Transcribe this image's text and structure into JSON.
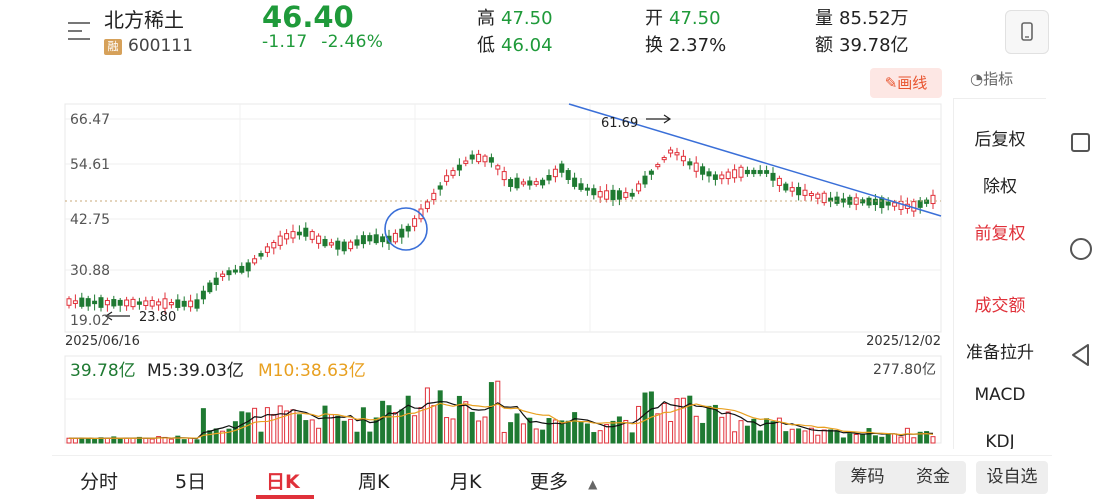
{
  "header": {
    "stock_name": "北方稀土",
    "badge": "融",
    "stock_code": "600111",
    "price": "46.40",
    "change": "-1.17",
    "change_pct": "-2.46%",
    "high_label": "高",
    "high": "47.50",
    "low_label": "低",
    "low": "46.04",
    "open_label": "开",
    "open": "47.50",
    "turnover_label": "换",
    "turnover": "2.37%",
    "volume_label": "量",
    "volume": "85.52万",
    "amount_label": "额",
    "amount": "39.78亿"
  },
  "toolbar": {
    "draw_label": "画线",
    "indicator_label": "指标"
  },
  "side_panel": {
    "items": [
      "后复权",
      "除权",
      "前复权",
      "成交额",
      "准备拉升",
      "MACD",
      "KDJ"
    ],
    "active": "前复权",
    "highlight": "成交额"
  },
  "price_axis": {
    "ticks": [
      "66.47",
      "54.61",
      "42.75",
      "30.88",
      "19.02"
    ]
  },
  "annotations": {
    "high_value": "61.69",
    "low_value": "23.80"
  },
  "date_axis": {
    "start": "2025/06/16",
    "end": "2025/12/02"
  },
  "volume_panel": {
    "current": "39.78亿",
    "m5": "M5:39.03亿",
    "m10": "M10:38.63亿",
    "max": "277.80亿"
  },
  "bottom_tabs": {
    "tabs": [
      "分时",
      "5日",
      "日K",
      "周K",
      "月K",
      "更多"
    ],
    "active": "日K",
    "chips_label": "筹码",
    "funds_label": "资金",
    "watchlist_label": "设自选"
  },
  "colors": {
    "up": "#e0313a",
    "down": "#1f7a32",
    "trendline": "#3a6fd8",
    "m10": "#e8a020",
    "accent": "#e0313a"
  }
}
